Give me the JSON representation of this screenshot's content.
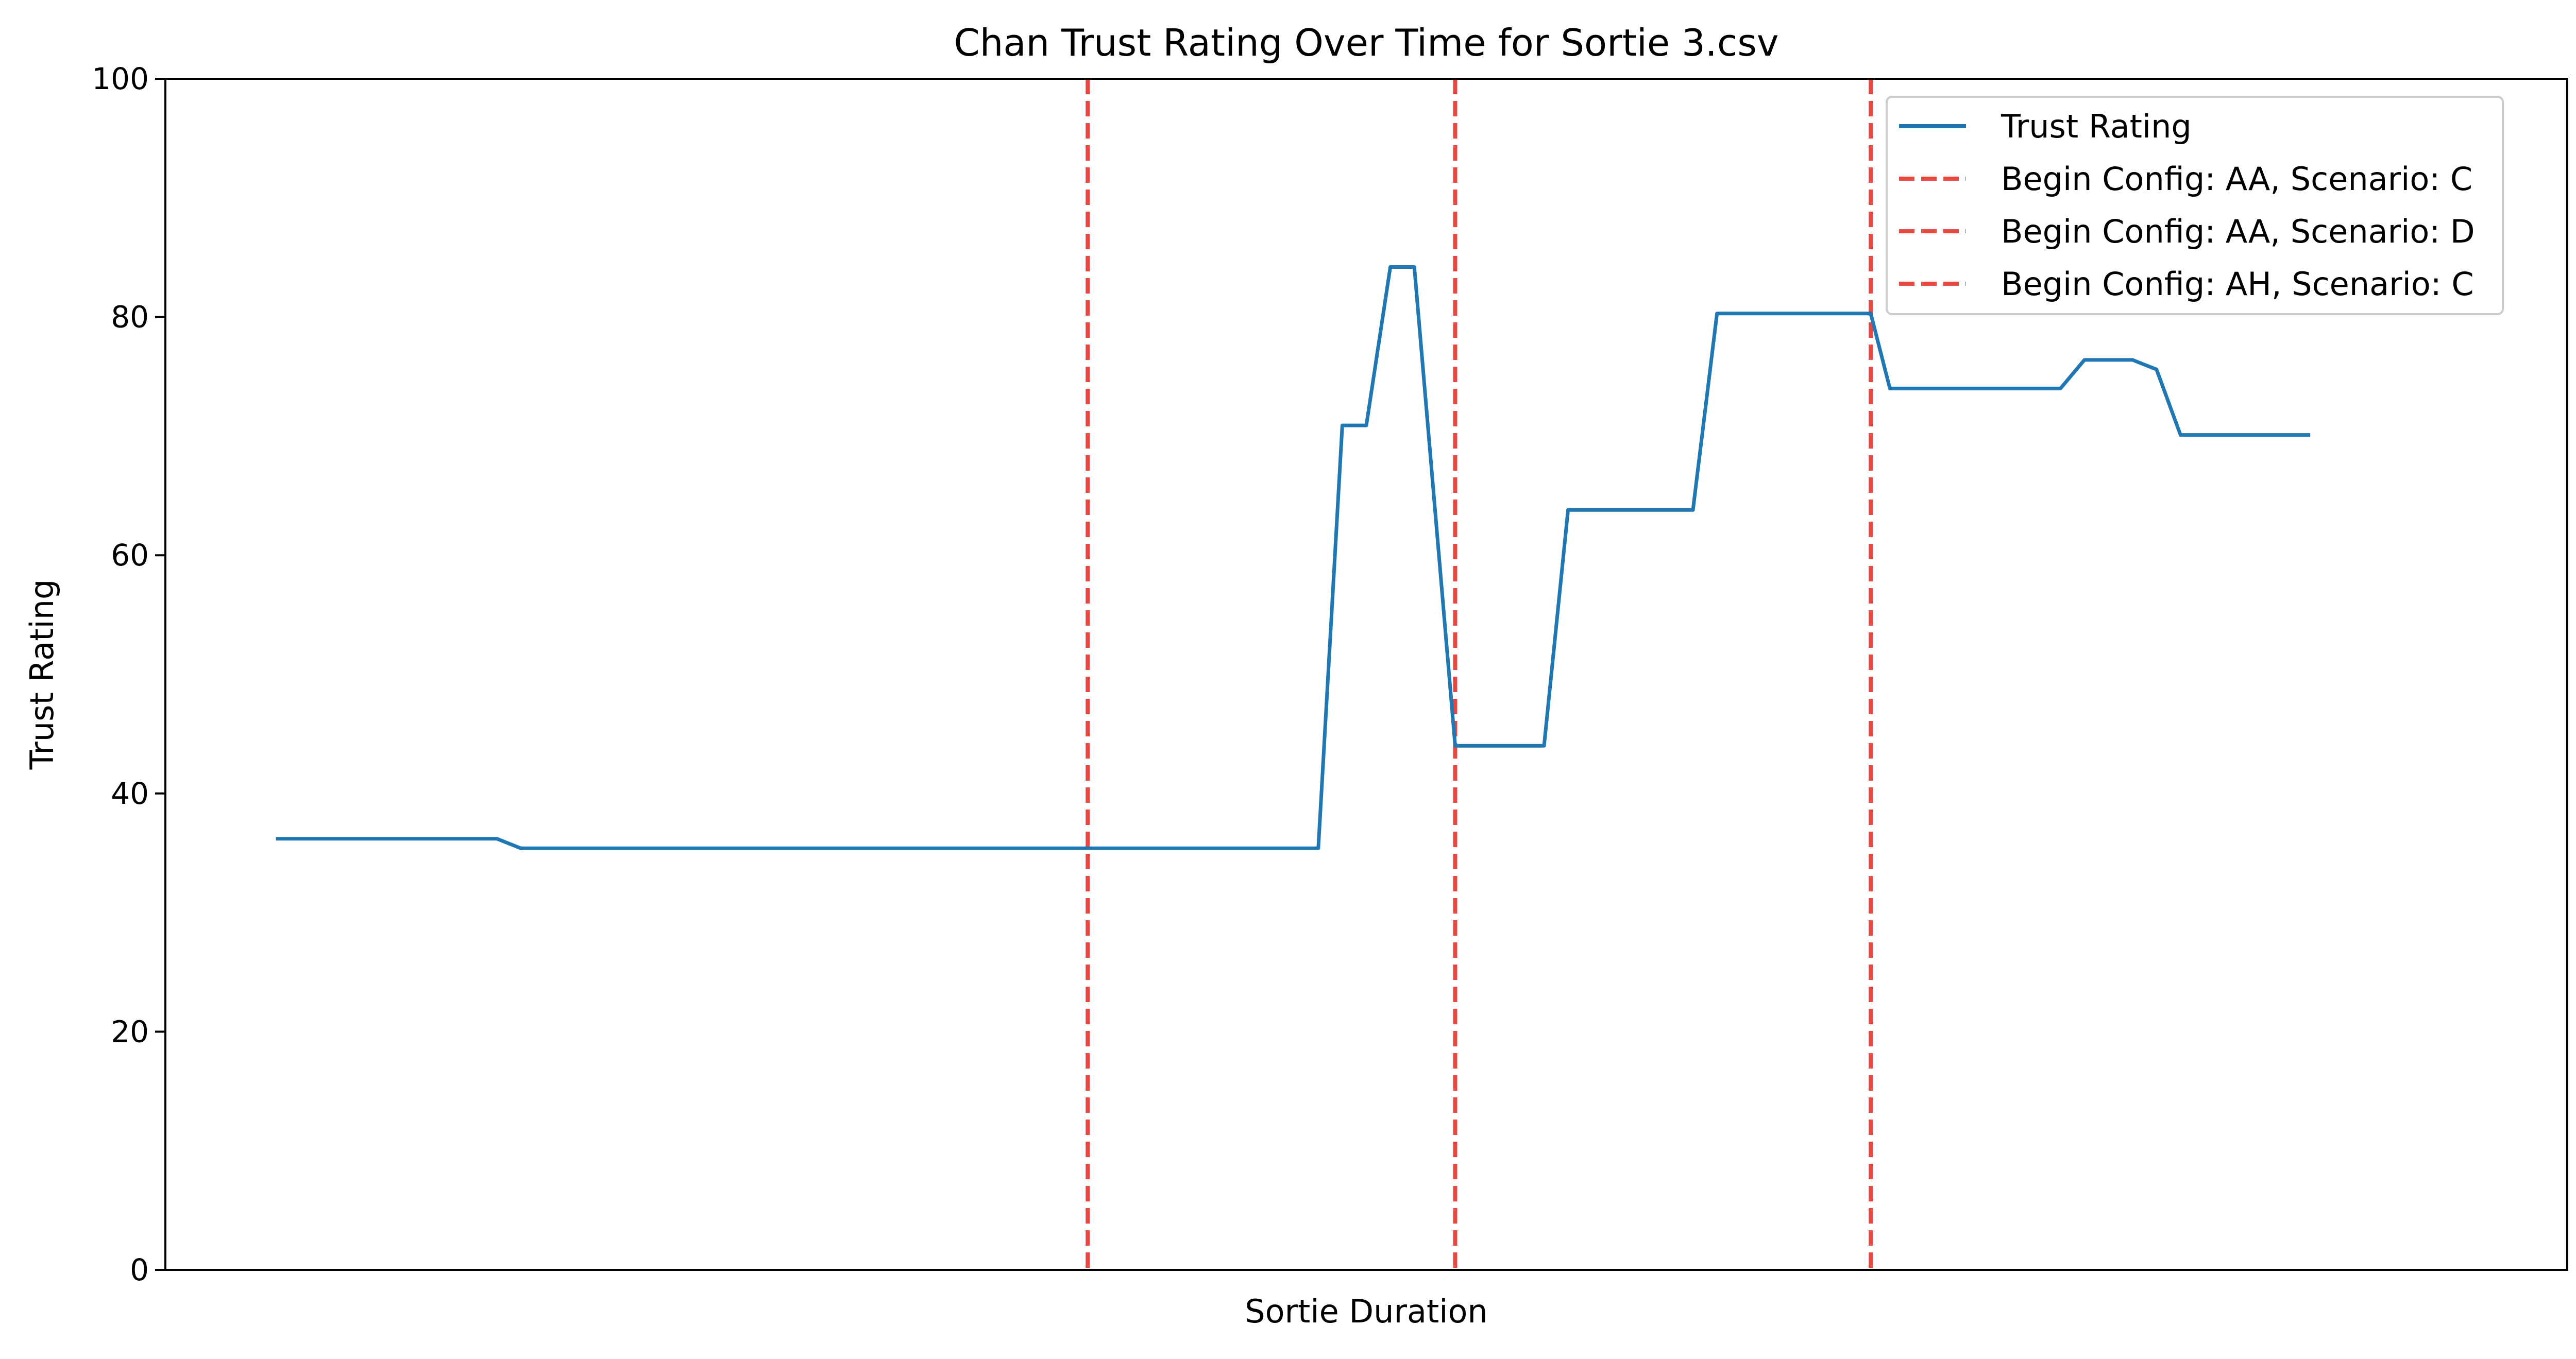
{
  "chart_data": {
    "type": "line",
    "title": "Chan Trust Rating Over Time for Sortie 3.csv",
    "xlabel": "Sortie Duration",
    "ylabel": "Trust Rating",
    "xlim": [
      0,
      100
    ],
    "ylim": [
      0,
      100
    ],
    "yticks": [
      "0",
      "20",
      "40",
      "60",
      "80",
      "100"
    ],
    "grid": false,
    "legend_position": "top-right",
    "series": [
      {
        "name": "Trust Rating",
        "color": "#1f77b4",
        "x": [
          4.6,
          13.8,
          14.8,
          47.1,
          48.0,
          49.0,
          50.0,
          51.0,
          52.0,
          53.7,
          54.0,
          57.4,
          58.4,
          63.6,
          64.6,
          67.5,
          71.0,
          71.8,
          72.7,
          78.9,
          79.9,
          81.9,
          82.9,
          83.9,
          85.0,
          89.3
        ],
        "values": [
          36.2,
          36.2,
          35.4,
          35.4,
          35.4,
          70.9,
          70.9,
          84.2,
          84.2,
          44.0,
          44.0,
          44.0,
          63.8,
          63.8,
          80.3,
          80.3,
          80.3,
          74.0,
          74.0,
          74.0,
          76.4,
          76.4,
          75.6,
          70.1,
          70.1,
          70.1
        ]
      }
    ],
    "vlines": [
      {
        "name": "Begin Config: AA, Scenario: C",
        "x": 38.4,
        "color": "#e8473f",
        "style": "dashed"
      },
      {
        "name": "Begin Config: AA, Scenario: D",
        "x": 53.7,
        "color": "#e8473f",
        "style": "dashed"
      },
      {
        "name": "Begin Config: AH, Scenario: C",
        "x": 71.0,
        "color": "#e8473f",
        "style": "dashed"
      }
    ]
  }
}
